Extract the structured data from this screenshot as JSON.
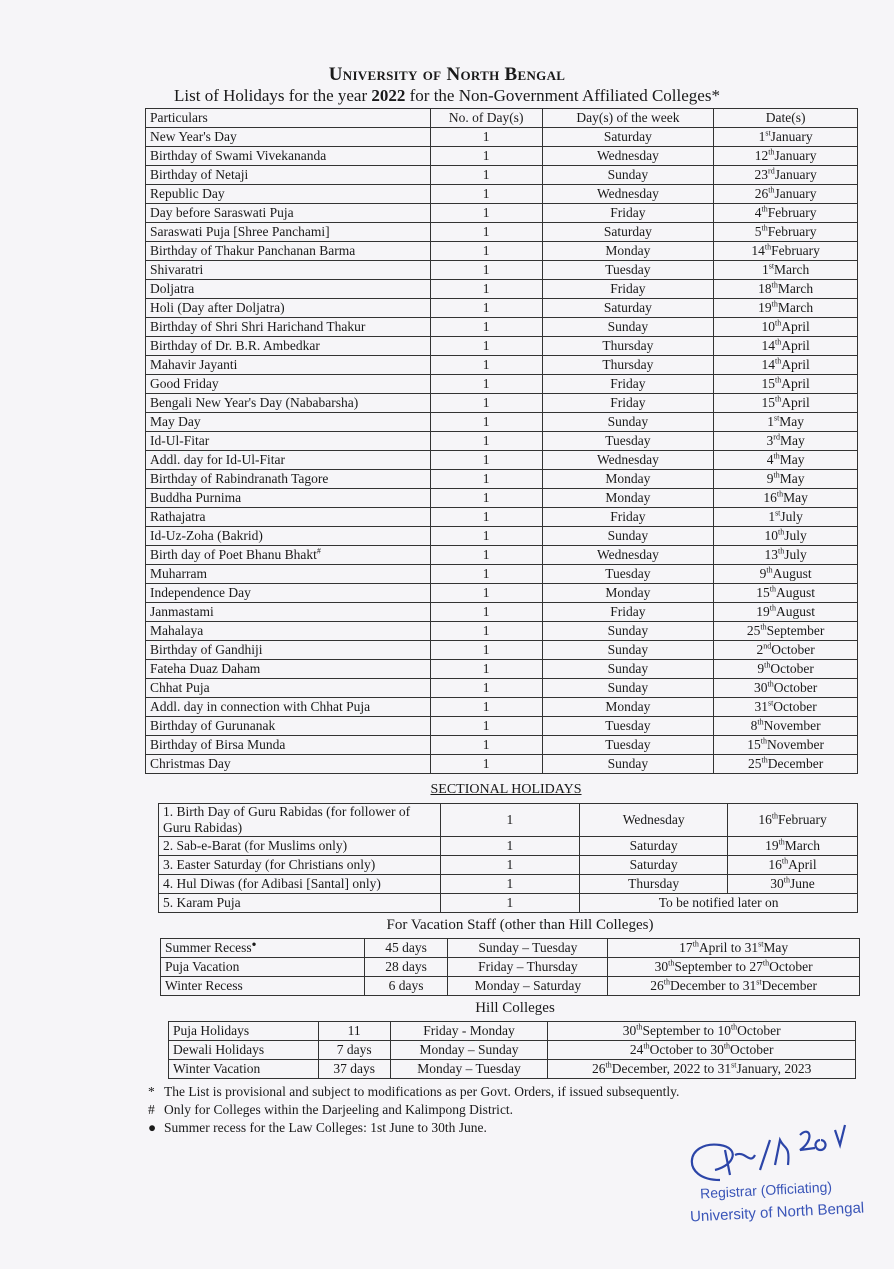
{
  "header": {
    "title": "University of North Bengal",
    "subtitle_pre": "List of Holidays for the year ",
    "year": "2022",
    "subtitle_post": " for the Non-Government Affiliated Colleges*"
  },
  "main": {
    "columns": [
      "Particulars",
      "No. of Day(s)",
      "Day(s) of the week",
      "Date(s)"
    ],
    "rows": [
      {
        "name": "New Year's Day",
        "days": "1",
        "weekday": "Saturday",
        "d": "1",
        "s": "st",
        "m": "January"
      },
      {
        "name": "Birthday of Swami Vivekananda",
        "days": "1",
        "weekday": "Wednesday",
        "d": "12",
        "s": "th",
        "m": "January"
      },
      {
        "name": "Birthday of Netaji",
        "days": "1",
        "weekday": "Sunday",
        "d": "23",
        "s": "rd",
        "m": "January"
      },
      {
        "name": "Republic Day",
        "days": "1",
        "weekday": "Wednesday",
        "d": "26",
        "s": "th",
        "m": "January"
      },
      {
        "name": "Day before Saraswati Puja",
        "days": "1",
        "weekday": "Friday",
        "d": "4",
        "s": "th",
        "m": "February"
      },
      {
        "name": "Saraswati Puja [Shree Panchami]",
        "days": "1",
        "weekday": "Saturday",
        "d": "5",
        "s": "th",
        "m": "February"
      },
      {
        "name": "Birthday of Thakur Panchanan Barma",
        "days": "1",
        "weekday": "Monday",
        "d": "14",
        "s": "th",
        "m": "February"
      },
      {
        "name": "Shivaratri",
        "days": "1",
        "weekday": "Tuesday",
        "d": "1",
        "s": "st",
        "m": "March"
      },
      {
        "name": "Doljatra",
        "days": "1",
        "weekday": "Friday",
        "d": "18",
        "s": "th",
        "m": "March"
      },
      {
        "name": "Holi (Day after Doljatra)",
        "days": "1",
        "weekday": "Saturday",
        "d": "19",
        "s": "th",
        "m": "March"
      },
      {
        "name": "Birthday of Shri Shri Harichand Thakur",
        "days": "1",
        "weekday": "Sunday",
        "d": "10",
        "s": "th",
        "m": "April"
      },
      {
        "name": "Birthday of Dr. B.R. Ambedkar",
        "days": "1",
        "weekday": "Thursday",
        "d": "14",
        "s": "th",
        "m": "April"
      },
      {
        "name": "Mahavir Jayanti",
        "days": "1",
        "weekday": "Thursday",
        "d": "14",
        "s": "th",
        "m": "April"
      },
      {
        "name": "Good Friday",
        "days": "1",
        "weekday": "Friday",
        "d": "15",
        "s": "th",
        "m": "April"
      },
      {
        "name": "Bengali New Year's Day (Nababarsha)",
        "days": "1",
        "weekday": "Friday",
        "d": "15",
        "s": "th",
        "m": "April"
      },
      {
        "name": "May Day",
        "days": "1",
        "weekday": "Sunday",
        "d": "1",
        "s": "st",
        "m": "May"
      },
      {
        "name": "Id-Ul-Fitar",
        "days": "1",
        "weekday": "Tuesday",
        "d": "3",
        "s": "rd",
        "m": "May"
      },
      {
        "name": "Addl. day for Id-Ul-Fitar",
        "days": "1",
        "weekday": "Wednesday",
        "d": "4",
        "s": "th",
        "m": "May"
      },
      {
        "name": "Birthday of Rabindranath Tagore",
        "days": "1",
        "weekday": "Monday",
        "d": "9",
        "s": "th",
        "m": "May"
      },
      {
        "name": "Buddha Purnima",
        "days": "1",
        "weekday": "Monday",
        "d": "16",
        "s": "th",
        "m": "May"
      },
      {
        "name": "Rathajatra",
        "days": "1",
        "weekday": "Friday",
        "d": "1",
        "s": "st",
        "m": "July"
      },
      {
        "name": "Id-Uz-Zoha (Bakrid)",
        "days": "1",
        "weekday": "Sunday",
        "d": "10",
        "s": "th",
        "m": "July"
      },
      {
        "name": "Birth day of Poet Bhanu Bhakt",
        "mark": "#",
        "days": "1",
        "weekday": "Wednesday",
        "d": "13",
        "s": "th",
        "m": "July"
      },
      {
        "name": "Muharram",
        "days": "1",
        "weekday": "Tuesday",
        "d": "9",
        "s": "th",
        "m": "August"
      },
      {
        "name": "Independence Day",
        "days": "1",
        "weekday": "Monday",
        "d": "15",
        "s": "th",
        "m": "August"
      },
      {
        "name": "Janmastami",
        "days": "1",
        "weekday": "Friday",
        "d": "19",
        "s": "th",
        "m": "August"
      },
      {
        "name": "Mahalaya",
        "days": "1",
        "weekday": "Sunday",
        "d": "25",
        "s": "th",
        "m": "September"
      },
      {
        "name": "Birthday of Gandhiji",
        "days": "1",
        "weekday": "Sunday",
        "d": "2",
        "s": "nd",
        "m": "October"
      },
      {
        "name": "Fateha Duaz Daham",
        "days": "1",
        "weekday": "Sunday",
        "d": "9",
        "s": "th",
        "m": "October"
      },
      {
        "name": "Chhat Puja",
        "days": "1",
        "weekday": "Sunday",
        "d": "30",
        "s": "th",
        "m": "October"
      },
      {
        "name": "Addl. day in connection with Chhat Puja",
        "days": "1",
        "weekday": "Monday",
        "d": "31",
        "s": "st",
        "m": "October"
      },
      {
        "name": "Birthday of Gurunanak",
        "days": "1",
        "weekday": "Tuesday",
        "d": "8",
        "s": "th",
        "m": "November"
      },
      {
        "name": "Birthday of Birsa Munda",
        "days": "1",
        "weekday": "Tuesday",
        "d": "15",
        "s": "th",
        "m": "November"
      },
      {
        "name": "Christmas Day",
        "days": "1",
        "weekday": "Sunday",
        "d": "25",
        "s": "th",
        "m": "December"
      }
    ]
  },
  "sectional": {
    "heading": "SECTIONAL HOLIDAYS",
    "rows": [
      {
        "name": "1.  Birth Day of Guru Rabidas (for follower of Guru Rabidas)",
        "days": "1",
        "weekday": "Wednesday",
        "d": "16",
        "s": "th",
        "m": "February"
      },
      {
        "name": "2. Sab-e-Barat (for Muslims only)",
        "days": "1",
        "weekday": "Saturday",
        "d": "19",
        "s": "th",
        "m": "March"
      },
      {
        "name": "3. Easter Saturday (for Christians only)",
        "days": "1",
        "weekday": "Saturday",
        "d": "16",
        "s": "th",
        "m": "April"
      },
      {
        "name": "4. Hul Diwas (for Adibasi [Santal] only)",
        "days": "1",
        "weekday": "Thursday",
        "d": "30",
        "s": "th",
        "m": "June"
      },
      {
        "name": "5. Karam Puja",
        "days": "1",
        "note": "To be notified later on"
      }
    ]
  },
  "vacation": {
    "heading": "For Vacation Staff (other than Hill Colleges)",
    "rows": [
      {
        "name": "Summer Recess",
        "mark": "●",
        "days": "45 days",
        "weekday": "Sunday – Tuesday",
        "d": "17",
        "s": "th",
        "m": "April to ",
        "d2": "31",
        "s2": "st",
        "m2": "May"
      },
      {
        "name": "Puja Vacation",
        "days": "28 days",
        "weekday": "Friday – Thursday",
        "d": "30",
        "s": "th",
        "m": "September to ",
        "d2": "27",
        "s2": "th",
        "m2": "October"
      },
      {
        "name": "Winter Recess",
        "days": "6 days",
        "weekday": "Monday – Saturday",
        "d": "26",
        "s": "th",
        "m": "December to ",
        "d2": "31",
        "s2": "st",
        "m2": "December"
      }
    ]
  },
  "hill": {
    "heading": "Hill Colleges",
    "rows": [
      {
        "name": "Puja Holidays",
        "days": "11",
        "weekday": "Friday - Monday",
        "d": "30",
        "s": "th",
        "m": "September to ",
        "d2": "10",
        "s2": "th",
        "m2": "October"
      },
      {
        "name": "Dewali Holidays",
        "days": "7 days",
        "weekday": "Monday – Sunday",
        "d": "24",
        "s": "th",
        "m": "October to ",
        "d2": "30",
        "s2": "th",
        "m2": "October"
      },
      {
        "name": "Winter Vacation",
        "days": "37 days",
        "weekday": "Monday – Tuesday",
        "d": "26",
        "s": "th",
        "m": "December, 2022 to ",
        "d2": "31",
        "s2": "st",
        "m2": "January, 2023"
      }
    ]
  },
  "notes": [
    {
      "mark": "*",
      "text": "The List is provisional and subject to modifications as per Govt. Orders, if issued subsequently."
    },
    {
      "mark": "#",
      "text": "Only for Colleges within the Darjeeling and Kalimpong District."
    },
    {
      "mark": "●",
      "text": "Summer recess for the Law Colleges: 1st June to 30th June."
    }
  ],
  "stamp": {
    "line1": "Registrar (Officiating)",
    "line2": "University of North Bengal",
    "signature_date": "6/12/2021",
    "color": "#3a55b8"
  }
}
